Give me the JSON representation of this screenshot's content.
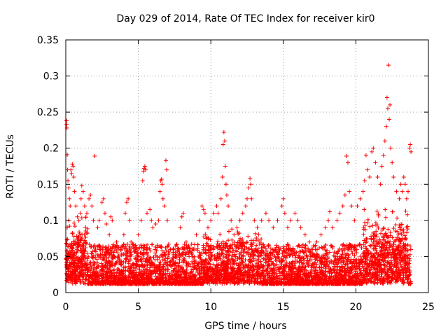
{
  "chart_data": {
    "type": "scatter",
    "title": "Day 029 of 2014, Rate Of TEC Index for receiver kir0",
    "xlabel": "GPS time / hours",
    "ylabel": "ROTI / TECUs",
    "xlim": [
      0,
      25
    ],
    "ylim": [
      0,
      0.35
    ],
    "x_ticks": [
      0,
      5,
      10,
      15,
      20,
      25
    ],
    "y_ticks": [
      0,
      0.05,
      0.1,
      0.15,
      0.2,
      0.25,
      0.3,
      0.35
    ],
    "x_tick_labels": [
      "0",
      "5",
      "10",
      "15",
      "20",
      "25"
    ],
    "y_tick_labels": [
      "0",
      "0.05",
      "0.1",
      "0.15",
      "0.2",
      "0.25",
      "0.3",
      "0.35"
    ],
    "grid": true,
    "marker": "+",
    "series": [
      {
        "name": "ROTI",
        "color": "#ff0000",
        "points": [
          [
            0.05,
            0.238
          ],
          [
            0.05,
            0.233
          ],
          [
            0.08,
            0.228
          ],
          [
            0.1,
            0.191
          ],
          [
            0.12,
            0.17
          ],
          [
            0.15,
            0.155
          ],
          [
            0.2,
            0.145
          ],
          [
            0.25,
            0.13
          ],
          [
            0.3,
            0.12
          ],
          [
            0.2,
            0.1
          ],
          [
            0.1,
            0.09
          ],
          [
            0.35,
            0.17
          ],
          [
            0.4,
            0.165
          ],
          [
            0.45,
            0.178
          ],
          [
            0.5,
            0.175
          ],
          [
            0.55,
            0.16
          ],
          [
            0.6,
            0.14
          ],
          [
            0.7,
            0.12
          ],
          [
            0.8,
            0.105
          ],
          [
            0.9,
            0.1
          ],
          [
            1.0,
            0.11
          ],
          [
            1.05,
            0.13
          ],
          [
            1.1,
            0.148
          ],
          [
            1.2,
            0.14
          ],
          [
            1.3,
            0.12
          ],
          [
            1.45,
            0.11
          ],
          [
            1.6,
            0.13
          ],
          [
            1.7,
            0.135
          ],
          [
            1.8,
            0.12
          ],
          [
            1.9,
            0.1
          ],
          [
            2.0,
            0.189
          ],
          [
            2.2,
            0.09
          ],
          [
            2.3,
            0.1
          ],
          [
            2.5,
            0.125
          ],
          [
            2.6,
            0.13
          ],
          [
            2.7,
            0.11
          ],
          [
            2.8,
            0.095
          ],
          [
            3.0,
            0.08
          ],
          [
            3.1,
            0.105
          ],
          [
            3.2,
            0.1
          ],
          [
            3.5,
            0.07
          ],
          [
            3.8,
            0.06
          ],
          [
            4.0,
            0.08
          ],
          [
            4.1,
            0.11
          ],
          [
            4.2,
            0.125
          ],
          [
            4.3,
            0.13
          ],
          [
            4.4,
            0.1
          ],
          [
            4.5,
            0.07
          ],
          [
            4.8,
            0.06
          ],
          [
            5.0,
            0.08
          ],
          [
            5.2,
            0.1
          ],
          [
            5.3,
            0.155
          ],
          [
            5.35,
            0.168
          ],
          [
            5.4,
            0.172
          ],
          [
            5.45,
            0.175
          ],
          [
            5.5,
            0.17
          ],
          [
            5.6,
            0.11
          ],
          [
            5.8,
            0.115
          ],
          [
            5.9,
            0.1
          ],
          [
            6.0,
            0.09
          ],
          [
            6.2,
            0.095
          ],
          [
            6.4,
            0.1
          ],
          [
            6.5,
            0.14
          ],
          [
            6.55,
            0.155
          ],
          [
            6.6,
            0.157
          ],
          [
            6.65,
            0.15
          ],
          [
            6.7,
            0.13
          ],
          [
            6.8,
            0.12
          ],
          [
            6.9,
            0.183
          ],
          [
            6.95,
            0.17
          ],
          [
            7.0,
            0.1
          ],
          [
            7.2,
            0.06
          ],
          [
            7.5,
            0.04
          ],
          [
            7.8,
            0.06
          ],
          [
            7.9,
            0.09
          ],
          [
            8.0,
            0.105
          ],
          [
            8.1,
            0.11
          ],
          [
            8.3,
            0.07
          ],
          [
            8.5,
            0.05
          ],
          [
            8.8,
            0.06
          ],
          [
            9.0,
            0.08
          ],
          [
            9.2,
            0.1
          ],
          [
            9.4,
            0.12
          ],
          [
            9.5,
            0.115
          ],
          [
            9.6,
            0.11
          ],
          [
            9.8,
            0.09
          ],
          [
            10.0,
            0.1
          ],
          [
            10.2,
            0.11
          ],
          [
            10.4,
            0.12
          ],
          [
            10.5,
            0.11
          ],
          [
            10.7,
            0.13
          ],
          [
            10.8,
            0.16
          ],
          [
            10.85,
            0.205
          ],
          [
            10.9,
            0.222
          ],
          [
            10.95,
            0.21
          ],
          [
            11.0,
            0.175
          ],
          [
            11.05,
            0.15
          ],
          [
            11.1,
            0.135
          ],
          [
            11.2,
            0.12
          ],
          [
            11.4,
            0.1
          ],
          [
            11.6,
            0.08
          ],
          [
            11.8,
            0.09
          ],
          [
            12.0,
            0.1
          ],
          [
            12.2,
            0.11
          ],
          [
            12.4,
            0.12
          ],
          [
            12.5,
            0.13
          ],
          [
            12.6,
            0.145
          ],
          [
            12.7,
            0.158
          ],
          [
            12.75,
            0.15
          ],
          [
            12.8,
            0.13
          ],
          [
            13.0,
            0.1
          ],
          [
            13.2,
            0.09
          ],
          [
            13.5,
            0.1
          ],
          [
            13.8,
            0.11
          ],
          [
            14.0,
            0.1
          ],
          [
            14.3,
            0.09
          ],
          [
            14.6,
            0.1
          ],
          [
            14.9,
            0.12
          ],
          [
            15.0,
            0.13
          ],
          [
            15.1,
            0.11
          ],
          [
            15.3,
            0.09
          ],
          [
            15.5,
            0.1
          ],
          [
            15.8,
            0.11
          ],
          [
            16.0,
            0.1
          ],
          [
            16.2,
            0.09
          ],
          [
            16.5,
            0.08
          ],
          [
            16.8,
            0.07
          ],
          [
            17.0,
            0.06
          ],
          [
            17.3,
            0.07
          ],
          [
            17.6,
            0.08
          ],
          [
            17.9,
            0.09
          ],
          [
            18.1,
            0.1
          ],
          [
            18.2,
            0.112
          ],
          [
            18.4,
            0.09
          ],
          [
            18.7,
            0.1
          ],
          [
            18.9,
            0.11
          ],
          [
            19.1,
            0.12
          ],
          [
            19.25,
            0.135
          ],
          [
            19.35,
            0.189
          ],
          [
            19.45,
            0.18
          ],
          [
            19.55,
            0.14
          ],
          [
            19.7,
            0.12
          ],
          [
            19.9,
            0.1
          ],
          [
            20.1,
            0.12
          ],
          [
            20.3,
            0.13
          ],
          [
            20.5,
            0.14
          ],
          [
            20.6,
            0.155
          ],
          [
            20.7,
            0.19
          ],
          [
            20.8,
            0.17
          ],
          [
            20.95,
            0.16
          ],
          [
            21.1,
            0.195
          ],
          [
            21.2,
            0.2
          ],
          [
            21.35,
            0.18
          ],
          [
            21.5,
            0.16
          ],
          [
            21.7,
            0.15
          ],
          [
            21.8,
            0.175
          ],
          [
            21.9,
            0.19
          ],
          [
            22.0,
            0.21
          ],
          [
            22.1,
            0.23
          ],
          [
            22.15,
            0.27
          ],
          [
            22.2,
            0.255
          ],
          [
            22.25,
            0.315
          ],
          [
            22.3,
            0.24
          ],
          [
            22.35,
            0.26
          ],
          [
            22.4,
            0.2
          ],
          [
            22.5,
            0.18
          ],
          [
            22.6,
            0.16
          ],
          [
            22.8,
            0.14
          ],
          [
            23.0,
            0.13
          ],
          [
            23.1,
            0.15
          ],
          [
            23.2,
            0.14
          ],
          [
            23.3,
            0.16
          ],
          [
            23.4,
            0.15
          ],
          [
            23.5,
            0.13
          ],
          [
            23.6,
            0.14
          ],
          [
            23.7,
            0.2
          ],
          [
            23.75,
            0.205
          ],
          [
            23.8,
            0.195
          ]
        ],
        "dense_noise": {
          "x_range": [
            0,
            23.8
          ],
          "y_base": 0.012,
          "y_spread": 0.055,
          "note": "dense cloud of many low ROTI values between 0.01 and ~0.08 across the whole day"
        }
      }
    ]
  }
}
